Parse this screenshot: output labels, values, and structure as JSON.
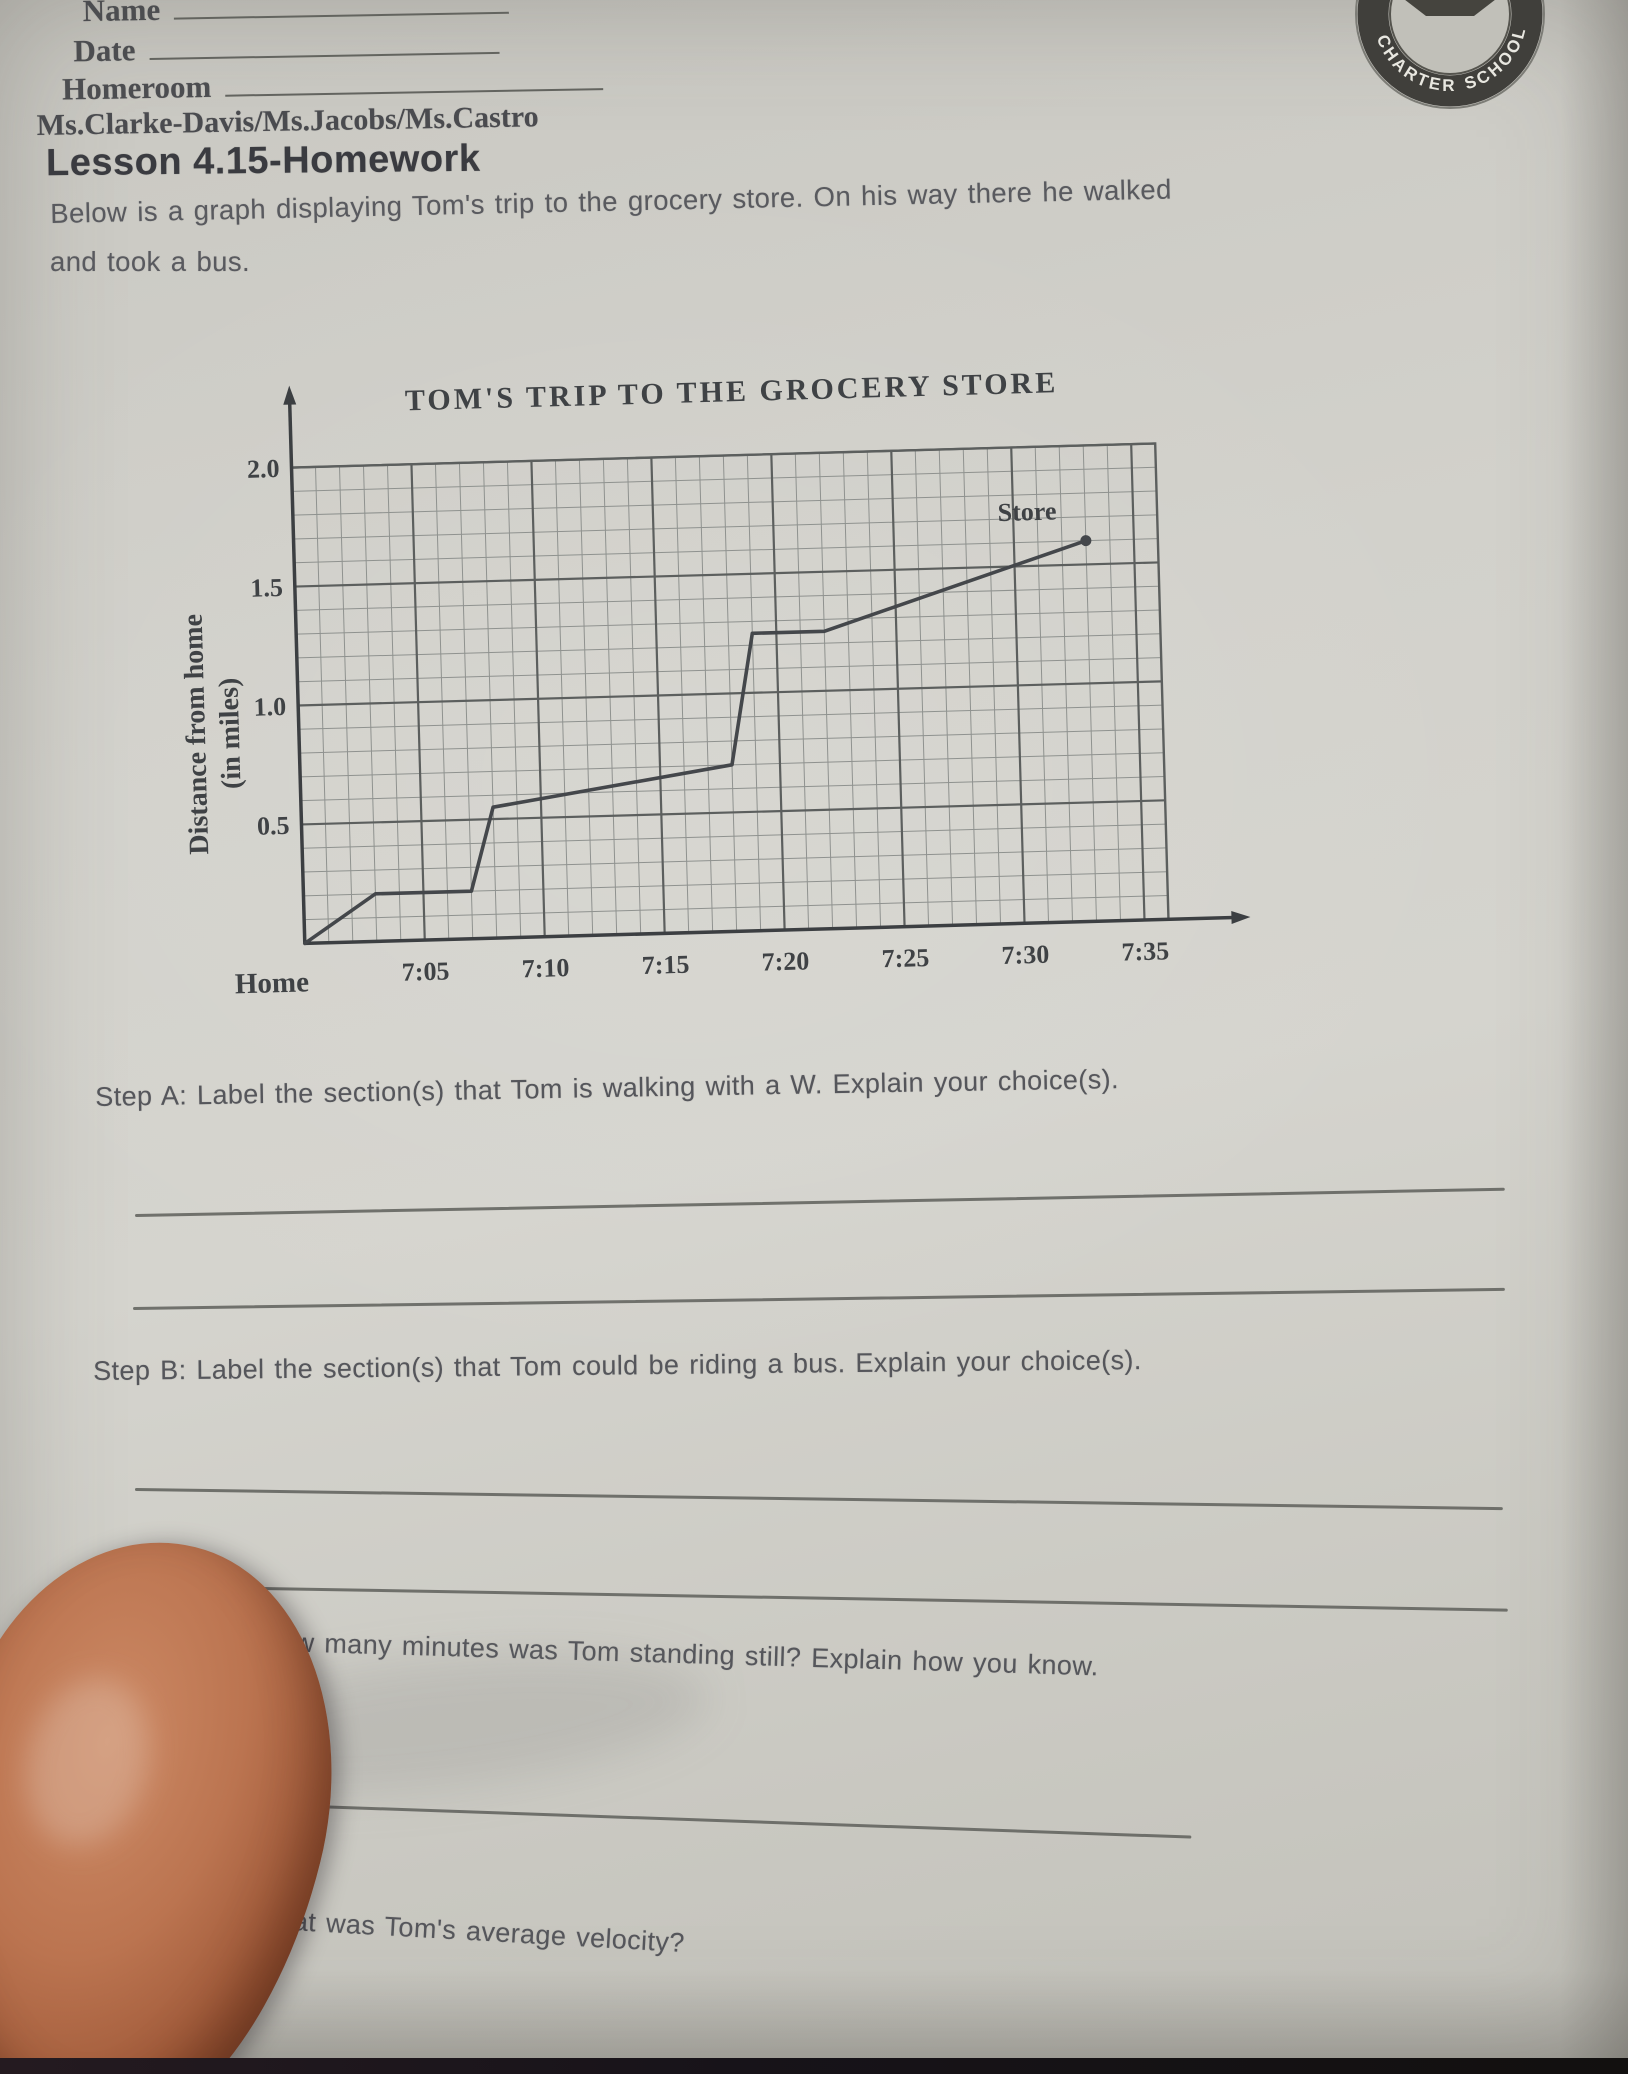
{
  "header": {
    "name_label": "Name",
    "date_label": "Date",
    "homeroom_label": "Homeroom",
    "teachers": "Ms.Clarke-Davis/Ms.Jacobs/Ms.Castro"
  },
  "logo": {
    "ring_left": "CHARTER",
    "ring_right": "SCHOOL"
  },
  "lesson": {
    "title": "Lesson 4.15-Homework",
    "intro_line1": "Below is a graph displaying Tom's trip to the grocery store. On his way there he walked",
    "intro_line2": "and took a bus."
  },
  "steps": {
    "a": "Step A: Label the section(s) that Tom is walking with a W. Explain your choice(s).",
    "b": "Step B: Label the section(s) that Tom could be riding a bus. Explain your choice(s).",
    "c": "Step C: For how many minutes was Tom standing still? Explain how you know.",
    "d": "Step D: What was Tom's average velocity?"
  },
  "chart_data": {
    "type": "line",
    "title": "TOM'S TRIP TO THE GROCERY STORE",
    "ylabel_line1": "Distance from home",
    "ylabel_line2": "(in miles)",
    "x_origin_label": "Home",
    "end_label": "Store",
    "xlim_minutes": [
      0,
      36
    ],
    "ylim_miles": [
      0,
      2.0
    ],
    "minor_step_min": 1,
    "minor_step_miles": 0.1,
    "x_ticks": [
      {
        "min": 5,
        "label": "7:05"
      },
      {
        "min": 10,
        "label": "7:10"
      },
      {
        "min": 15,
        "label": "7:15"
      },
      {
        "min": 20,
        "label": "7:20"
      },
      {
        "min": 25,
        "label": "7:25"
      },
      {
        "min": 30,
        "label": "7:30"
      },
      {
        "min": 35,
        "label": "7:35"
      }
    ],
    "y_ticks": [
      {
        "miles": 0.5,
        "label": "0.5"
      },
      {
        "miles": 1.0,
        "label": "1.0"
      },
      {
        "miles": 1.5,
        "label": "1.5"
      },
      {
        "miles": 2.0,
        "label": "2.0"
      }
    ],
    "points": [
      {
        "time": "7:00",
        "min": 0,
        "miles": 0
      },
      {
        "time": "7:03",
        "min": 3,
        "miles": 0.2
      },
      {
        "time": "7:07",
        "min": 7,
        "miles": 0.2
      },
      {
        "time": "7:08",
        "min": 8,
        "miles": 0.55
      },
      {
        "time": "7:18",
        "min": 18,
        "miles": 0.7
      },
      {
        "time": "7:19",
        "min": 19,
        "miles": 1.25
      },
      {
        "time": "7:22",
        "min": 22,
        "miles": 1.25
      },
      {
        "time": "7:33",
        "min": 33,
        "miles": 1.6
      }
    ],
    "colors": {
      "line": "#44474b",
      "grid_minor": "#8f928f",
      "grid_major": "#5c5f5e",
      "axis": "#3c3f42"
    },
    "grid": "on",
    "legend": "none"
  }
}
